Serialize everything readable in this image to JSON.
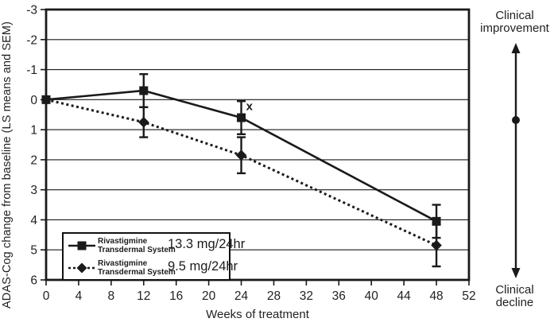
{
  "figure": {
    "y_axis_title": "ADAS-Cog change from baseline (LS means and SEM)",
    "x_axis_title": "Weeks of treatment"
  },
  "right_annotation": {
    "improvement_line1": "Clinical",
    "improvement_line2": "improvement",
    "decline_line1": "Clinical",
    "decline_line2": "decline"
  },
  "legend": {
    "items": [
      {
        "label_line1": "Rivastigmine",
        "label_line2": "Transdermal System",
        "dose": "13.3 mg/24hr",
        "marker": "square",
        "line": "solid"
      },
      {
        "label_line1": "Rivastigmine",
        "label_line2": "Transdermal System",
        "dose": "9.5 mg/24hr",
        "marker": "diamond",
        "line": "dotted"
      }
    ]
  },
  "colors": {
    "ink": "#1a1a1a",
    "text": "#231f20",
    "background": "#ffffff"
  },
  "chart_data": {
    "type": "line",
    "title": "",
    "xlabel": "Weeks of treatment",
    "ylabel": "ADAS-Cog change from baseline (LS means and SEM)",
    "xlim": [
      0,
      52
    ],
    "ylim": [
      -3,
      6
    ],
    "y_axis_inverted": true,
    "grid": "horizontal",
    "legend_position": "inside bottom-left",
    "x_ticks": [
      0,
      4,
      8,
      12,
      16,
      20,
      24,
      28,
      32,
      36,
      40,
      44,
      48,
      52
    ],
    "y_ticks": [
      -3,
      -2,
      -1,
      0,
      1,
      2,
      3,
      4,
      5,
      6
    ],
    "series": [
      {
        "id": "13.3mg",
        "name": "Rivastigmine Transdermal System 13.3 mg/24hr",
        "marker": "square",
        "line": "solid",
        "x": [
          0,
          12,
          24,
          48
        ],
        "y": [
          0.0,
          -0.3,
          0.6,
          4.05
        ],
        "sem": [
          0,
          0.55,
          0.55,
          0.55
        ]
      },
      {
        "id": "9.5mg",
        "name": "Rivastigmine Transdermal System 9.5 mg/24hr",
        "marker": "diamond",
        "line": "dotted",
        "x": [
          0,
          12,
          24,
          48
        ],
        "y": [
          0.0,
          0.75,
          1.85,
          4.85
        ],
        "sem": [
          0,
          0.5,
          0.6,
          0.7
        ]
      }
    ],
    "annotations": [
      {
        "text": "x",
        "week": 25.0,
        "value": 0.22
      }
    ]
  }
}
